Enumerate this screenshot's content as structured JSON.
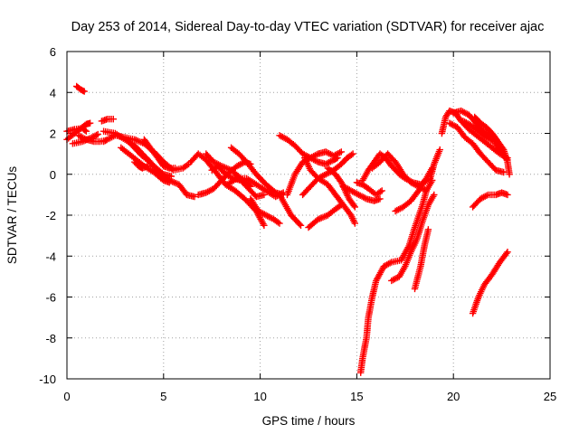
{
  "chart_data": {
    "type": "scatter",
    "title": "Day 253 of 2014, Sidereal Day-to-day VTEC variation (SDTVAR) for receiver ajac",
    "xlabel": "GPS time / hours",
    "ylabel": "SDTVAR / TECUs",
    "xlim": [
      0,
      25
    ],
    "ylim": [
      -10,
      6
    ],
    "xticks": [
      0,
      5,
      10,
      15,
      20,
      25
    ],
    "yticks": [
      -10,
      -8,
      -6,
      -4,
      -2,
      0,
      2,
      4,
      6
    ],
    "grid": true,
    "marker": "+",
    "color": "#ff0000",
    "series": [
      {
        "points": [
          [
            0.5,
            4.3
          ],
          [
            0.7,
            4.15
          ],
          [
            0.9,
            4.05
          ]
        ]
      },
      {
        "points": [
          [
            0.0,
            1.7
          ],
          [
            0.4,
            2.0
          ],
          [
            0.8,
            2.3
          ],
          [
            1.0,
            2.45
          ],
          [
            1.2,
            2.5
          ]
        ]
      },
      {
        "points": [
          [
            0.0,
            2.1
          ],
          [
            0.4,
            2.2
          ],
          [
            0.8,
            2.25
          ],
          [
            1.0,
            2.1
          ]
        ]
      },
      {
        "points": [
          [
            0.3,
            1.5
          ],
          [
            0.8,
            1.6
          ],
          [
            1.3,
            1.8
          ],
          [
            1.6,
            1.95
          ]
        ]
      },
      {
        "points": [
          [
            0.6,
            1.9
          ],
          [
            1.0,
            1.7
          ],
          [
            1.4,
            1.6
          ],
          [
            1.7,
            1.6
          ],
          [
            2.0,
            1.65
          ]
        ]
      },
      {
        "points": [
          [
            1.8,
            2.6
          ],
          [
            2.1,
            2.7
          ],
          [
            2.4,
            2.7
          ]
        ]
      },
      {
        "points": [
          [
            1.9,
            1.6
          ],
          [
            2.5,
            1.9
          ],
          [
            3.0,
            1.8
          ],
          [
            3.5,
            1.7
          ],
          [
            4.0,
            1.5
          ],
          [
            4.5,
            1.1
          ],
          [
            5.0,
            0.6
          ],
          [
            5.5,
            0.2
          ],
          [
            6.0,
            0.3
          ],
          [
            6.3,
            0.5
          ]
        ]
      },
      {
        "points": [
          [
            1.9,
            2.1
          ],
          [
            2.5,
            2.0
          ],
          [
            3.0,
            1.7
          ],
          [
            3.5,
            1.4
          ],
          [
            4.0,
            0.9
          ],
          [
            4.5,
            0.4
          ],
          [
            5.0,
            0.0
          ],
          [
            5.4,
            -0.1
          ]
        ]
      },
      {
        "points": [
          [
            2.8,
            1.3
          ],
          [
            3.2,
            1.0
          ],
          [
            3.6,
            0.7
          ],
          [
            4.0,
            0.4
          ],
          [
            4.5,
            0.1
          ],
          [
            5.0,
            -0.3
          ],
          [
            5.3,
            -0.4
          ]
        ]
      },
      {
        "points": [
          [
            3.5,
            0.6
          ],
          [
            3.7,
            0.4
          ],
          [
            3.9,
            0.3
          ],
          [
            4.2,
            0.4
          ]
        ]
      },
      {
        "points": [
          [
            3.3,
            1.5
          ],
          [
            3.6,
            1.2
          ],
          [
            3.9,
            0.9
          ],
          [
            4.3,
            0.6
          ],
          [
            4.8,
            0.0
          ],
          [
            5.3,
            -0.3
          ],
          [
            5.8,
            -0.5
          ],
          [
            6.2,
            -1.0
          ],
          [
            6.6,
            -1.1
          ]
        ]
      },
      {
        "points": [
          [
            4.0,
            1.7
          ],
          [
            4.3,
            1.3
          ],
          [
            4.7,
            0.8
          ],
          [
            5.0,
            0.4
          ],
          [
            5.3,
            0.3
          ],
          [
            5.6,
            0.3
          ]
        ]
      },
      {
        "points": [
          [
            6.4,
            0.6
          ],
          [
            6.8,
            1.0
          ],
          [
            7.2,
            0.7
          ],
          [
            7.8,
            0.0
          ],
          [
            8.2,
            -0.5
          ],
          [
            8.7,
            -0.8
          ],
          [
            9.2,
            -1.2
          ],
          [
            9.8,
            -1.8
          ],
          [
            10.2,
            -2.5
          ]
        ]
      },
      {
        "points": [
          [
            6.8,
            -1.0
          ],
          [
            7.2,
            -0.9
          ],
          [
            7.6,
            -0.7
          ],
          [
            8.0,
            -0.3
          ],
          [
            8.4,
            0.1
          ],
          [
            8.8,
            0.4
          ],
          [
            9.2,
            0.6
          ],
          [
            9.5,
            0.5
          ]
        ]
      },
      {
        "points": [
          [
            7.5,
            0.2
          ],
          [
            7.8,
            0.4
          ],
          [
            8.2,
            0.0
          ],
          [
            8.6,
            -0.2
          ],
          [
            9.0,
            -0.3
          ],
          [
            9.4,
            -0.7
          ],
          [
            9.8,
            -1.1
          ],
          [
            10.2,
            -1.0
          ]
        ]
      },
      {
        "points": [
          [
            7.2,
            1.0
          ],
          [
            7.6,
            0.6
          ],
          [
            8.0,
            0.4
          ],
          [
            8.5,
            0.2
          ],
          [
            9.0,
            -0.2
          ],
          [
            9.5,
            -0.6
          ]
        ]
      },
      {
        "points": [
          [
            8.5,
            1.3
          ],
          [
            8.9,
            1.0
          ],
          [
            9.3,
            0.6
          ],
          [
            9.8,
            0.0
          ],
          [
            10.3,
            -0.5
          ],
          [
            10.8,
            -0.9
          ],
          [
            11.2,
            -1.0
          ]
        ]
      },
      {
        "points": [
          [
            9.5,
            -1.2
          ],
          [
            9.9,
            -1.8
          ],
          [
            10.3,
            -2.0
          ],
          [
            10.7,
            -2.2
          ],
          [
            11.0,
            -2.4
          ]
        ]
      },
      {
        "points": [
          [
            8.3,
            -0.5
          ],
          [
            8.8,
            -0.2
          ],
          [
            9.3,
            -0.2
          ],
          [
            9.8,
            -0.5
          ],
          [
            10.3,
            -0.8
          ],
          [
            10.8,
            -1.1
          ],
          [
            11.2,
            -0.9
          ]
        ]
      },
      {
        "points": [
          [
            11.0,
            1.9
          ],
          [
            11.4,
            1.7
          ],
          [
            11.8,
            1.4
          ],
          [
            12.2,
            1.0
          ],
          [
            12.6,
            0.8
          ],
          [
            13.0,
            0.6
          ],
          [
            13.4,
            0.5
          ],
          [
            13.8,
            0.7
          ],
          [
            14.0,
            0.8
          ]
        ]
      },
      {
        "points": [
          [
            11.4,
            -1.0
          ],
          [
            11.8,
            0.0
          ],
          [
            12.2,
            0.6
          ],
          [
            12.6,
            0.8
          ],
          [
            13.0,
            1.0
          ],
          [
            13.4,
            1.1
          ],
          [
            13.8,
            0.9
          ],
          [
            14.2,
            1.1
          ]
        ]
      },
      {
        "points": [
          [
            11.0,
            -1.0
          ],
          [
            11.6,
            -2.0
          ],
          [
            12.1,
            -2.5
          ]
        ]
      },
      {
        "points": [
          [
            12.5,
            -2.6
          ],
          [
            13.0,
            -2.2
          ],
          [
            13.5,
            -2.0
          ],
          [
            13.9,
            -1.7
          ],
          [
            14.2,
            -1.5
          ]
        ]
      },
      {
        "points": [
          [
            12.2,
            -1.0
          ],
          [
            12.6,
            -0.6
          ],
          [
            13.0,
            -0.2
          ],
          [
            13.4,
            0.0
          ],
          [
            13.8,
            0.2
          ],
          [
            14.2,
            0.5
          ],
          [
            14.5,
            0.8
          ],
          [
            14.8,
            1.0
          ]
        ]
      },
      {
        "points": [
          [
            12.3,
            0.8
          ],
          [
            12.6,
            0.2
          ],
          [
            13.0,
            -0.2
          ],
          [
            13.5,
            -0.5
          ],
          [
            13.9,
            -1.0
          ],
          [
            14.3,
            -1.5
          ],
          [
            14.7,
            -2.0
          ],
          [
            14.9,
            -2.4
          ]
        ]
      },
      {
        "points": [
          [
            13.5,
            0.3
          ],
          [
            13.9,
            0.0
          ],
          [
            14.2,
            -0.4
          ],
          [
            14.6,
            -1.2
          ],
          [
            14.9,
            -1.6
          ]
        ]
      },
      {
        "points": [
          [
            14.3,
            -0.6
          ],
          [
            14.7,
            -0.8
          ],
          [
            15.1,
            -1.0
          ],
          [
            15.5,
            -1.2
          ],
          [
            15.9,
            -1.3
          ],
          [
            16.2,
            -1.2
          ]
        ]
      },
      {
        "points": [
          [
            15.0,
            -0.4
          ],
          [
            15.3,
            -0.5
          ],
          [
            15.6,
            -0.7
          ],
          [
            16.0,
            -1.0
          ],
          [
            16.3,
            -0.8
          ]
        ]
      },
      {
        "points": [
          [
            15.3,
            -0.3
          ],
          [
            15.6,
            0.2
          ],
          [
            15.9,
            0.6
          ],
          [
            16.2,
            1.0
          ],
          [
            16.5,
            0.8
          ],
          [
            16.8,
            0.4
          ],
          [
            17.2,
            0.0
          ],
          [
            17.5,
            -0.2
          ],
          [
            17.9,
            -0.4
          ],
          [
            18.3,
            -0.5
          ],
          [
            18.8,
            -0.2
          ],
          [
            19.0,
            0.5
          ],
          [
            19.3,
            1.2
          ]
        ]
      },
      {
        "points": [
          [
            15.8,
            0.3
          ],
          [
            16.2,
            0.6
          ],
          [
            16.6,
            1.0
          ],
          [
            17.0,
            0.6
          ],
          [
            17.4,
            0.0
          ],
          [
            17.8,
            -0.4
          ],
          [
            18.2,
            -0.6
          ],
          [
            18.6,
            -0.8
          ],
          [
            18.9,
            -0.3
          ]
        ]
      },
      {
        "points": [
          [
            17.0,
            -1.8
          ],
          [
            17.4,
            -1.6
          ],
          [
            17.8,
            -1.3
          ],
          [
            18.2,
            -0.8
          ],
          [
            18.6,
            -0.2
          ],
          [
            18.9,
            0.3
          ]
        ]
      },
      {
        "points": [
          [
            15.2,
            -9.7
          ],
          [
            15.3,
            -9.0
          ],
          [
            15.5,
            -8.0
          ],
          [
            15.6,
            -7.0
          ],
          [
            15.8,
            -6.0
          ],
          [
            16.0,
            -5.2
          ],
          [
            16.4,
            -4.5
          ],
          [
            16.8,
            -4.3
          ],
          [
            17.3,
            -4.2
          ],
          [
            17.7,
            -3.5
          ],
          [
            18.0,
            -2.6
          ],
          [
            18.4,
            -1.5
          ],
          [
            18.6,
            -0.8
          ]
        ]
      },
      {
        "points": [
          [
            16.8,
            -5.2
          ],
          [
            17.2,
            -5.0
          ],
          [
            17.5,
            -4.5
          ],
          [
            17.8,
            -3.8
          ],
          [
            18.1,
            -3.2
          ],
          [
            18.4,
            -2.3
          ],
          [
            18.7,
            -1.5
          ],
          [
            19.0,
            -1.0
          ]
        ]
      },
      {
        "points": [
          [
            18.0,
            -5.6
          ],
          [
            18.3,
            -4.5
          ],
          [
            18.5,
            -3.5
          ],
          [
            18.7,
            -2.7
          ]
        ]
      },
      {
        "points": [
          [
            19.4,
            2.0
          ],
          [
            19.6,
            2.8
          ],
          [
            19.8,
            3.1
          ],
          [
            20.1,
            3.0
          ],
          [
            20.4,
            2.6
          ],
          [
            20.8,
            2.2
          ],
          [
            21.2,
            1.9
          ],
          [
            21.6,
            1.6
          ],
          [
            22.0,
            1.3
          ],
          [
            22.4,
            1.0
          ],
          [
            22.8,
            0.8
          ]
        ]
      },
      {
        "points": [
          [
            19.8,
            2.5
          ],
          [
            20.2,
            2.3
          ],
          [
            20.6,
            1.8
          ],
          [
            21.0,
            1.5
          ],
          [
            21.4,
            1.0
          ],
          [
            21.8,
            0.6
          ],
          [
            22.2,
            0.2
          ],
          [
            22.6,
            0.1
          ]
        ]
      },
      {
        "points": [
          [
            20.5,
            2.6
          ],
          [
            20.9,
            2.4
          ],
          [
            21.3,
            2.1
          ],
          [
            21.7,
            1.8
          ],
          [
            22.1,
            1.6
          ],
          [
            22.5,
            1.0
          ],
          [
            22.8,
            0.7
          ]
        ]
      },
      {
        "points": [
          [
            20.0,
            3.0
          ],
          [
            20.4,
            3.1
          ],
          [
            20.8,
            2.9
          ],
          [
            21.1,
            2.6
          ],
          [
            21.4,
            2.2
          ],
          [
            21.7,
            2.0
          ],
          [
            22.0,
            1.8
          ]
        ]
      },
      {
        "points": [
          [
            21.1,
            2.8
          ],
          [
            21.4,
            2.5
          ],
          [
            21.7,
            2.3
          ],
          [
            22.0,
            2.0
          ],
          [
            22.3,
            1.6
          ],
          [
            22.6,
            1.2
          ],
          [
            22.8,
            0.6
          ],
          [
            22.9,
            0.0
          ]
        ]
      },
      {
        "points": [
          [
            21.0,
            -1.6
          ],
          [
            21.4,
            -1.2
          ],
          [
            21.8,
            -1.0
          ],
          [
            22.2,
            -1.0
          ],
          [
            22.5,
            -0.9
          ],
          [
            22.8,
            -1.0
          ]
        ]
      },
      {
        "points": [
          [
            21.0,
            -6.8
          ],
          [
            21.3,
            -6.0
          ],
          [
            21.6,
            -5.4
          ],
          [
            22.0,
            -4.9
          ],
          [
            22.4,
            -4.3
          ],
          [
            22.8,
            -3.8
          ]
        ]
      }
    ]
  }
}
